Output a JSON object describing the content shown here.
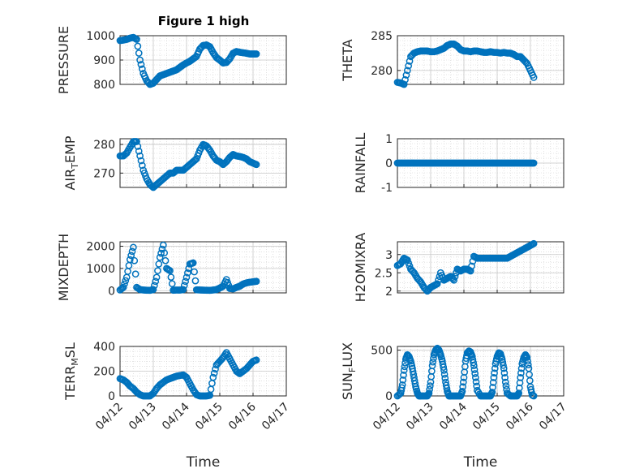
{
  "figure": {
    "title": "Figure 1 high"
  },
  "colors": {
    "marker": "#0072BD",
    "grid": "#d0d0d0",
    "axis": "#262626"
  },
  "chart_data": [
    {
      "type": "scatter",
      "name": "PRESSURE",
      "ylabel": "PRESSURE",
      "ylim": [
        800,
        1000
      ],
      "yticks": [
        800,
        900,
        1000
      ],
      "ytick_labels": [
        "800",
        "900",
        "1000"
      ],
      "xlim": [
        0,
        5
      ],
      "xticks": [
        0,
        1,
        2,
        3,
        4,
        5
      ],
      "xtick_labels": [
        "04/12",
        "04/13",
        "04/14",
        "04/15",
        "04/16",
        "04/17"
      ],
      "grid": true,
      "x": [
        0.0,
        0.1,
        0.2,
        0.3,
        0.4,
        0.5,
        0.6,
        0.7,
        0.8,
        0.9,
        1.0,
        1.1,
        1.2,
        1.3,
        1.4,
        1.5,
        1.6,
        1.7,
        1.8,
        1.9,
        2.0,
        2.1,
        2.2,
        2.3,
        2.4,
        2.5,
        2.6,
        2.7,
        2.8,
        2.9,
        3.0,
        3.1,
        3.2,
        3.3,
        3.4,
        3.5,
        3.6,
        3.7,
        3.8,
        3.9,
        4.0,
        4.1
      ],
      "y": [
        980,
        982,
        985,
        990,
        993,
        985,
        900,
        845,
        815,
        800,
        805,
        820,
        835,
        840,
        845,
        850,
        855,
        860,
        870,
        880,
        888,
        895,
        905,
        915,
        945,
        960,
        962,
        955,
        930,
        910,
        900,
        888,
        890,
        905,
        928,
        935,
        932,
        930,
        928,
        925,
        925,
        925
      ]
    },
    {
      "type": "scatter",
      "name": "THETA",
      "ylabel": "THETA",
      "ylim": [
        278,
        285
      ],
      "yticks": [
        280,
        285
      ],
      "ytick_labels": [
        "280",
        "285"
      ],
      "xlim": [
        0,
        5
      ],
      "xticks": [
        0,
        1,
        2,
        3,
        4,
        5
      ],
      "xtick_labels": [
        "04/12",
        "04/13",
        "04/14",
        "04/15",
        "04/16",
        "04/17"
      ],
      "grid": true,
      "x": [
        0.0,
        0.1,
        0.2,
        0.3,
        0.4,
        0.5,
        0.6,
        0.7,
        0.8,
        0.9,
        1.0,
        1.1,
        1.2,
        1.3,
        1.4,
        1.5,
        1.6,
        1.7,
        1.8,
        1.9,
        2.0,
        2.1,
        2.2,
        2.3,
        2.4,
        2.5,
        2.6,
        2.7,
        2.8,
        2.9,
        3.0,
        3.1,
        3.2,
        3.3,
        3.4,
        3.5,
        3.6,
        3.7,
        3.8,
        3.9,
        4.0,
        4.1
      ],
      "y": [
        278.3,
        278.2,
        278.0,
        280.0,
        282.0,
        282.5,
        282.7,
        282.8,
        282.8,
        282.8,
        282.7,
        282.7,
        282.8,
        283.0,
        283.2,
        283.6,
        283.8,
        283.8,
        283.5,
        283.0,
        282.8,
        282.8,
        282.7,
        282.8,
        282.8,
        282.7,
        282.6,
        282.6,
        282.7,
        282.6,
        282.6,
        282.5,
        282.6,
        282.5,
        282.5,
        282.3,
        282.0,
        282.0,
        281.5,
        281.0,
        280.0,
        279.0
      ]
    },
    {
      "type": "scatter",
      "name": "AIR_TEMP",
      "ylabel": "AIR",
      "ylabel_sub": "T",
      "ylabel_rest": "EMP",
      "ylim": [
        265,
        282
      ],
      "yticks": [
        270,
        280
      ],
      "ytick_labels": [
        "270",
        "280"
      ],
      "xlim": [
        0,
        5
      ],
      "xticks": [
        0,
        1,
        2,
        3,
        4,
        5
      ],
      "xtick_labels": [
        "04/12",
        "04/13",
        "04/14",
        "04/15",
        "04/16",
        "04/17"
      ],
      "grid": true,
      "x": [
        0.0,
        0.1,
        0.2,
        0.3,
        0.4,
        0.5,
        0.6,
        0.7,
        0.8,
        0.9,
        1.0,
        1.1,
        1.2,
        1.3,
        1.4,
        1.5,
        1.6,
        1.7,
        1.8,
        1.9,
        2.0,
        2.1,
        2.2,
        2.3,
        2.4,
        2.5,
        2.6,
        2.7,
        2.8,
        2.9,
        3.0,
        3.1,
        3.2,
        3.3,
        3.4,
        3.5,
        3.6,
        3.7,
        3.8,
        3.9,
        4.0,
        4.1
      ],
      "y": [
        276,
        276,
        277,
        279,
        281,
        281,
        276,
        271,
        268,
        266,
        265,
        266,
        267,
        268,
        269,
        270,
        270,
        271,
        271,
        271,
        272,
        273,
        274,
        275,
        278,
        280,
        279.5,
        278,
        276,
        274.5,
        274,
        273,
        274,
        275.5,
        276.5,
        276,
        275.8,
        275.5,
        275,
        274,
        273.5,
        273
      ]
    },
    {
      "type": "scatter",
      "name": "RAINFALL",
      "ylabel": "RAINFALL",
      "ylim": [
        -1,
        1
      ],
      "yticks": [
        -1,
        0,
        1
      ],
      "ytick_labels": [
        "-1",
        "0",
        "1"
      ],
      "xlim": [
        0,
        5
      ],
      "xticks": [
        0,
        1,
        2,
        3,
        4,
        5
      ],
      "xtick_labels": [
        "04/12",
        "04/13",
        "04/14",
        "04/15",
        "04/16",
        "04/17"
      ],
      "grid": true,
      "x": [
        0.0,
        0.1,
        0.2,
        0.3,
        0.4,
        0.5,
        0.6,
        0.7,
        0.8,
        0.9,
        1.0,
        1.1,
        1.2,
        1.3,
        1.4,
        1.5,
        1.6,
        1.7,
        1.8,
        1.9,
        2.0,
        2.1,
        2.2,
        2.3,
        2.4,
        2.5,
        2.6,
        2.7,
        2.8,
        2.9,
        3.0,
        3.1,
        3.2,
        3.3,
        3.4,
        3.5,
        3.6,
        3.7,
        3.8,
        3.9,
        4.0,
        4.1
      ],
      "y": [
        0,
        0,
        0,
        0,
        0,
        0,
        0,
        0,
        0,
        0,
        0,
        0,
        0,
        0,
        0,
        0,
        0,
        0,
        0,
        0,
        0,
        0,
        0,
        0,
        0,
        0,
        0,
        0,
        0,
        0,
        0,
        0,
        0,
        0,
        0,
        0,
        0,
        0,
        0,
        0,
        0,
        0
      ]
    },
    {
      "type": "scatter",
      "name": "MIXDEPTH",
      "ylabel": "MIXDEPTH",
      "ylim": [
        -100,
        2200
      ],
      "yticks": [
        0,
        1000,
        2000
      ],
      "ytick_labels": [
        "0",
        "1000",
        "2000"
      ],
      "xlim": [
        0,
        5
      ],
      "xticks": [
        0,
        1,
        2,
        3,
        4,
        5
      ],
      "xtick_labels": [
        "04/12",
        "04/13",
        "04/14",
        "04/15",
        "04/16",
        "04/17"
      ],
      "grid": true,
      "x": [
        0.0,
        0.1,
        0.2,
        0.3,
        0.4,
        0.5,
        0.6,
        0.7,
        0.8,
        0.9,
        1.0,
        1.1,
        1.2,
        1.3,
        1.4,
        1.5,
        1.6,
        1.7,
        1.8,
        1.9,
        2.0,
        2.1,
        2.2,
        2.3,
        2.4,
        2.5,
        2.6,
        2.7,
        2.8,
        2.9,
        3.0,
        3.1,
        3.2,
        3.3,
        3.4,
        3.5,
        3.6,
        3.7,
        3.8,
        3.9,
        4.0,
        4.1
      ],
      "y": [
        30,
        150,
        600,
        1400,
        1950,
        150,
        50,
        30,
        20,
        15,
        50,
        600,
        1500,
        2050,
        1000,
        900,
        20,
        30,
        25,
        50,
        600,
        1200,
        1250,
        40,
        30,
        25,
        20,
        15,
        30,
        50,
        120,
        200,
        500,
        100,
        80,
        150,
        200,
        300,
        350,
        380,
        400,
        420
      ]
    },
    {
      "type": "scatter",
      "name": "H2OMIXRA",
      "ylabel": "H2OMIXRA",
      "ylim": [
        1.95,
        3.35
      ],
      "yticks": [
        2,
        2.5,
        3
      ],
      "ytick_labels": [
        "2",
        "2.5",
        "3"
      ],
      "xlim": [
        0,
        5
      ],
      "xticks": [
        0,
        1,
        2,
        3,
        4,
        5
      ],
      "xtick_labels": [
        "04/12",
        "04/13",
        "04/14",
        "04/15",
        "04/16",
        "04/17"
      ],
      "grid": true,
      "x": [
        0.0,
        0.1,
        0.2,
        0.3,
        0.4,
        0.5,
        0.6,
        0.7,
        0.8,
        0.9,
        1.0,
        1.1,
        1.2,
        1.3,
        1.4,
        1.5,
        1.6,
        1.7,
        1.8,
        1.9,
        2.0,
        2.1,
        2.2,
        2.3,
        2.4,
        2.5,
        2.6,
        2.7,
        2.8,
        2.9,
        3.0,
        3.1,
        3.2,
        3.3,
        3.4,
        3.5,
        3.6,
        3.7,
        3.8,
        3.9,
        4.0,
        4.1
      ],
      "y": [
        2.7,
        2.75,
        2.9,
        2.85,
        2.6,
        2.5,
        2.35,
        2.25,
        2.1,
        2.0,
        2.1,
        2.15,
        2.2,
        2.5,
        2.3,
        2.35,
        2.4,
        2.3,
        2.6,
        2.55,
        2.6,
        2.6,
        2.55,
        2.95,
        2.9,
        2.9,
        2.9,
        2.9,
        2.9,
        2.9,
        2.9,
        2.9,
        2.9,
        2.9,
        2.95,
        3.0,
        3.05,
        3.1,
        3.15,
        3.2,
        3.25,
        3.3
      ]
    },
    {
      "type": "scatter",
      "name": "TERR_MSL",
      "ylabel": "TERR",
      "ylabel_sub": "M",
      "ylabel_rest": "SL",
      "ylim": [
        0,
        400
      ],
      "yticks": [
        0,
        200,
        400
      ],
      "ytick_labels": [
        "0",
        "200",
        "400"
      ],
      "xlim": [
        0,
        5
      ],
      "xticks": [
        0,
        1,
        2,
        3,
        4,
        5
      ],
      "xtick_labels": [
        "04/12",
        "04/13",
        "04/14",
        "04/15",
        "04/16",
        "04/17"
      ],
      "grid": true,
      "x": [
        0.0,
        0.1,
        0.2,
        0.3,
        0.4,
        0.5,
        0.6,
        0.7,
        0.8,
        0.9,
        1.0,
        1.1,
        1.2,
        1.3,
        1.4,
        1.5,
        1.6,
        1.7,
        1.8,
        1.9,
        2.0,
        2.1,
        2.2,
        2.3,
        2.4,
        2.5,
        2.6,
        2.7,
        2.8,
        2.9,
        3.0,
        3.1,
        3.2,
        3.3,
        3.4,
        3.5,
        3.6,
        3.7,
        3.8,
        3.9,
        4.0,
        4.1
      ],
      "y": [
        140,
        130,
        110,
        80,
        60,
        30,
        10,
        0,
        0,
        0,
        20,
        60,
        90,
        110,
        130,
        140,
        150,
        160,
        165,
        170,
        150,
        100,
        50,
        10,
        0,
        0,
        0,
        5,
        150,
        250,
        280,
        310,
        350,
        300,
        250,
        200,
        180,
        200,
        220,
        250,
        280,
        290
      ]
    },
    {
      "type": "scatter",
      "name": "SUN_FLUX",
      "ylabel": "SUN",
      "ylabel_sub": "F",
      "ylabel_rest": "LUX",
      "ylim": [
        0,
        540
      ],
      "yticks": [
        0,
        500
      ],
      "ytick_labels": [
        "0",
        "500"
      ],
      "xlim": [
        0,
        5
      ],
      "xticks": [
        0,
        1,
        2,
        3,
        4,
        5
      ],
      "xtick_labels": [
        "04/12",
        "04/13",
        "04/14",
        "04/15",
        "04/16",
        "04/17"
      ],
      "grid": true,
      "x": [
        0.0,
        0.1,
        0.15,
        0.2,
        0.25,
        0.3,
        0.35,
        0.4,
        0.45,
        0.5,
        0.55,
        0.6,
        0.65,
        0.7,
        0.8,
        0.9,
        0.95,
        1.0,
        1.05,
        1.1,
        1.15,
        1.2,
        1.25,
        1.3,
        1.35,
        1.4,
        1.45,
        1.5,
        1.55,
        1.6,
        1.7,
        1.8,
        1.9,
        1.95,
        2.0,
        2.05,
        2.1,
        2.15,
        2.2,
        2.25,
        2.3,
        2.35,
        2.4,
        2.5,
        2.6,
        2.7,
        2.8,
        2.85,
        2.9,
        2.95,
        3.0,
        3.05,
        3.1,
        3.15,
        3.2,
        3.25,
        3.3,
        3.4,
        3.5,
        3.6,
        3.65,
        3.7,
        3.75,
        3.8,
        3.85,
        3.9,
        3.95,
        4.0,
        4.05,
        4.1
      ],
      "y": [
        0,
        30,
        120,
        280,
        400,
        450,
        430,
        380,
        300,
        200,
        100,
        30,
        0,
        0,
        0,
        0,
        30,
        150,
        330,
        450,
        500,
        520,
        500,
        450,
        380,
        280,
        150,
        50,
        0,
        0,
        0,
        0,
        0,
        50,
        200,
        380,
        470,
        490,
        480,
        430,
        330,
        200,
        60,
        0,
        0,
        0,
        0,
        40,
        200,
        350,
        430,
        470,
        460,
        400,
        300,
        150,
        30,
        0,
        0,
        0,
        30,
        200,
        350,
        420,
        450,
        420,
        300,
        100,
        10,
        0
      ]
    }
  ]
}
